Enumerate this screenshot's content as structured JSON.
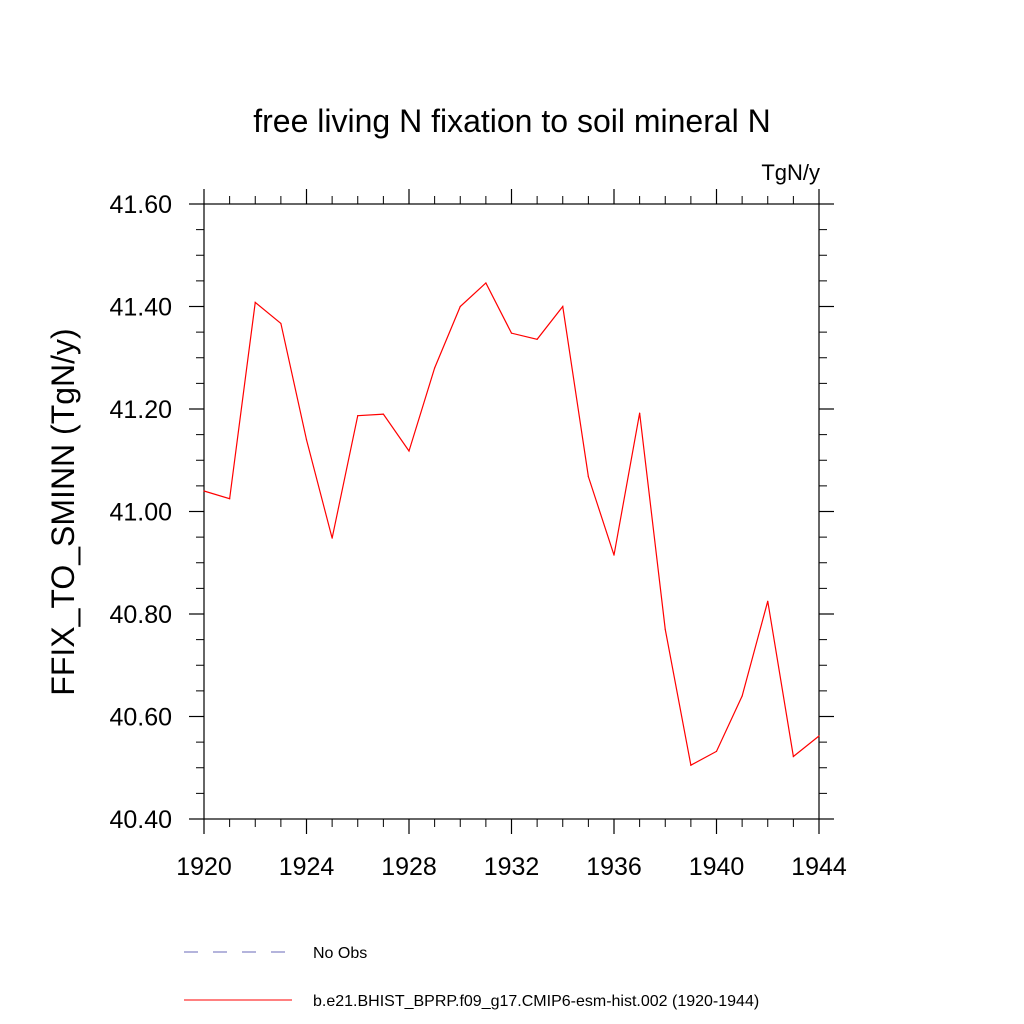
{
  "chart_data": {
    "type": "line",
    "title": "free living N fixation to soil mineral N",
    "units_label": "TgN/y",
    "ylabel": "FFIX_TO_SMINN  (TgN/y)",
    "xlabel": "",
    "xlim": [
      1920,
      1944
    ],
    "ylim": [
      40.4,
      41.6
    ],
    "x_ticks": [
      1920,
      1924,
      1928,
      1932,
      1936,
      1940,
      1944
    ],
    "x_tick_labels": [
      "1920",
      "1924",
      "1928",
      "1932",
      "1936",
      "1940",
      "1944"
    ],
    "y_ticks": [
      40.4,
      40.6,
      40.8,
      41.0,
      41.2,
      41.4,
      41.6
    ],
    "y_tick_labels": [
      "40.40",
      "40.60",
      "40.80",
      "41.00",
      "41.20",
      "41.40",
      "41.60"
    ],
    "x_minor_step": 1,
    "y_minor_step": 0.05,
    "grid": false,
    "series": [
      {
        "name": "b.e21.BHIST_BPRP.f09_g17.CMIP6-esm-hist.002 (1920-1944)",
        "color": "#ff0000",
        "dash": "solid",
        "x": [
          1920,
          1921,
          1922,
          1923,
          1924,
          1925,
          1926,
          1927,
          1928,
          1929,
          1930,
          1931,
          1932,
          1933,
          1934,
          1935,
          1936,
          1937,
          1938,
          1939,
          1940,
          1941,
          1942,
          1943,
          1944
        ],
        "values": [
          41.04,
          41.025,
          41.408,
          41.367,
          41.14,
          40.948,
          41.187,
          41.19,
          41.118,
          41.28,
          41.4,
          41.446,
          41.348,
          41.336,
          41.4,
          41.068,
          40.915,
          41.192,
          40.77,
          40.505,
          40.532,
          40.64,
          40.825,
          40.522,
          40.562
        ]
      }
    ],
    "legend": {
      "position": "bottom",
      "entries": [
        {
          "label": "No Obs",
          "color": "#6a6ab8",
          "dash": "dashed"
        },
        {
          "label": "b.e21.BHIST_BPRP.f09_g17.CMIP6-esm-hist.002 (1920-1944)",
          "color": "#ff0000",
          "dash": "solid"
        }
      ]
    }
  }
}
